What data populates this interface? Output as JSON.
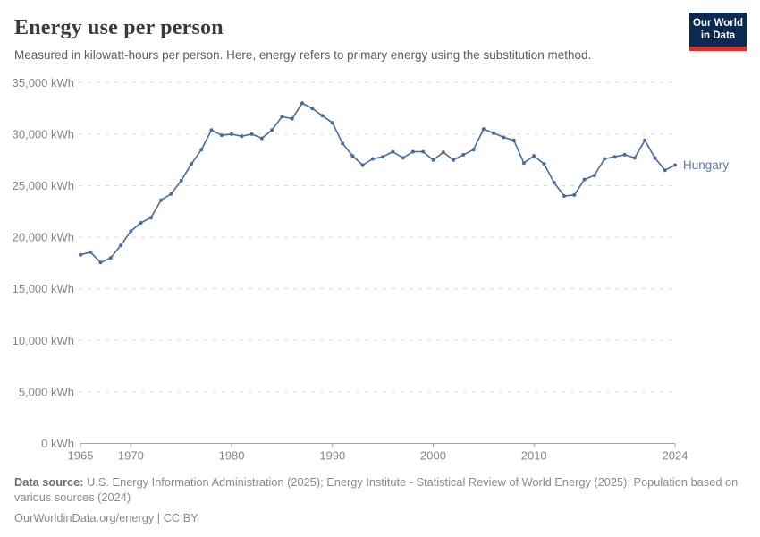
{
  "header": {
    "title": "Energy use per person",
    "subtitle": "Measured in kilowatt-hours per person. Here, energy refers to primary energy using the substitution method.",
    "logo": {
      "line1": "Our World",
      "line2": "in Data"
    },
    "logo_colors": {
      "background": "#0a2953",
      "accent": "#d8352a",
      "text": "#ffffff"
    }
  },
  "chart_data": {
    "type": "line",
    "title": "Energy use per person",
    "unit": "kWh",
    "grid": "horizontal-dashed",
    "legend_position": "end-of-line",
    "ylim": [
      0,
      35000
    ],
    "yticks": [
      {
        "value": 0,
        "label": "0 kWh"
      },
      {
        "value": 5000,
        "label": "5,000 kWh"
      },
      {
        "value": 10000,
        "label": "10,000 kWh"
      },
      {
        "value": 15000,
        "label": "15,000 kWh"
      },
      {
        "value": 20000,
        "label": "20,000 kWh"
      },
      {
        "value": 25000,
        "label": "25,000 kWh"
      },
      {
        "value": 30000,
        "label": "30,000 kWh"
      },
      {
        "value": 35000,
        "label": "35,000 kWh"
      }
    ],
    "xticks": [
      {
        "value": 1965,
        "label": "1965"
      },
      {
        "value": 1970,
        "label": "1970"
      },
      {
        "value": 1980,
        "label": "1980"
      },
      {
        "value": 1990,
        "label": "1990"
      },
      {
        "value": 2000,
        "label": "2000"
      },
      {
        "value": 2010,
        "label": "2010"
      },
      {
        "value": 2024,
        "label": "2024"
      }
    ],
    "x": [
      1965,
      1966,
      1967,
      1968,
      1969,
      1970,
      1971,
      1972,
      1973,
      1974,
      1975,
      1976,
      1977,
      1978,
      1979,
      1980,
      1981,
      1982,
      1983,
      1984,
      1985,
      1986,
      1987,
      1988,
      1989,
      1990,
      1991,
      1992,
      1993,
      1994,
      1995,
      1996,
      1997,
      1998,
      1999,
      2000,
      2001,
      2002,
      2003,
      2004,
      2005,
      2006,
      2007,
      2008,
      2009,
      2010,
      2011,
      2012,
      2013,
      2014,
      2015,
      2016,
      2017,
      2018,
      2019,
      2020,
      2021,
      2022,
      2023,
      2024
    ],
    "series": [
      {
        "name": "Hungary",
        "color": "#4a69a0",
        "label_color": "#5e79ae",
        "values": [
          18300,
          18550,
          17550,
          18000,
          19200,
          20600,
          21400,
          21900,
          23600,
          24200,
          25500,
          27100,
          28500,
          30400,
          29900,
          30000,
          29800,
          30000,
          29600,
          30400,
          31700,
          31500,
          33000,
          32500,
          31800,
          31100,
          29100,
          27900,
          27000,
          27600,
          27800,
          28300,
          27700,
          28300,
          28300,
          27500,
          28250,
          27500,
          28000,
          28500,
          30500,
          30100,
          29700,
          29400,
          27200,
          27900,
          27100,
          25300,
          24000,
          24100,
          25600,
          26000,
          27600,
          27800,
          28000,
          27700,
          29400,
          27700,
          26500,
          27000
        ]
      }
    ],
    "colors": {
      "gridline": "#d9d9d9",
      "axis": "#a3a3a3",
      "tick_label": "#858585"
    }
  },
  "footer": {
    "source_label": "Data source:",
    "source_text": "U.S. Energy Information Administration (2025); Energy Institute - Statistical Review of World Energy (2025); Population based on various sources (2024)",
    "url": "OurWorldinData.org/energy",
    "separator": " | ",
    "license": "CC BY"
  }
}
